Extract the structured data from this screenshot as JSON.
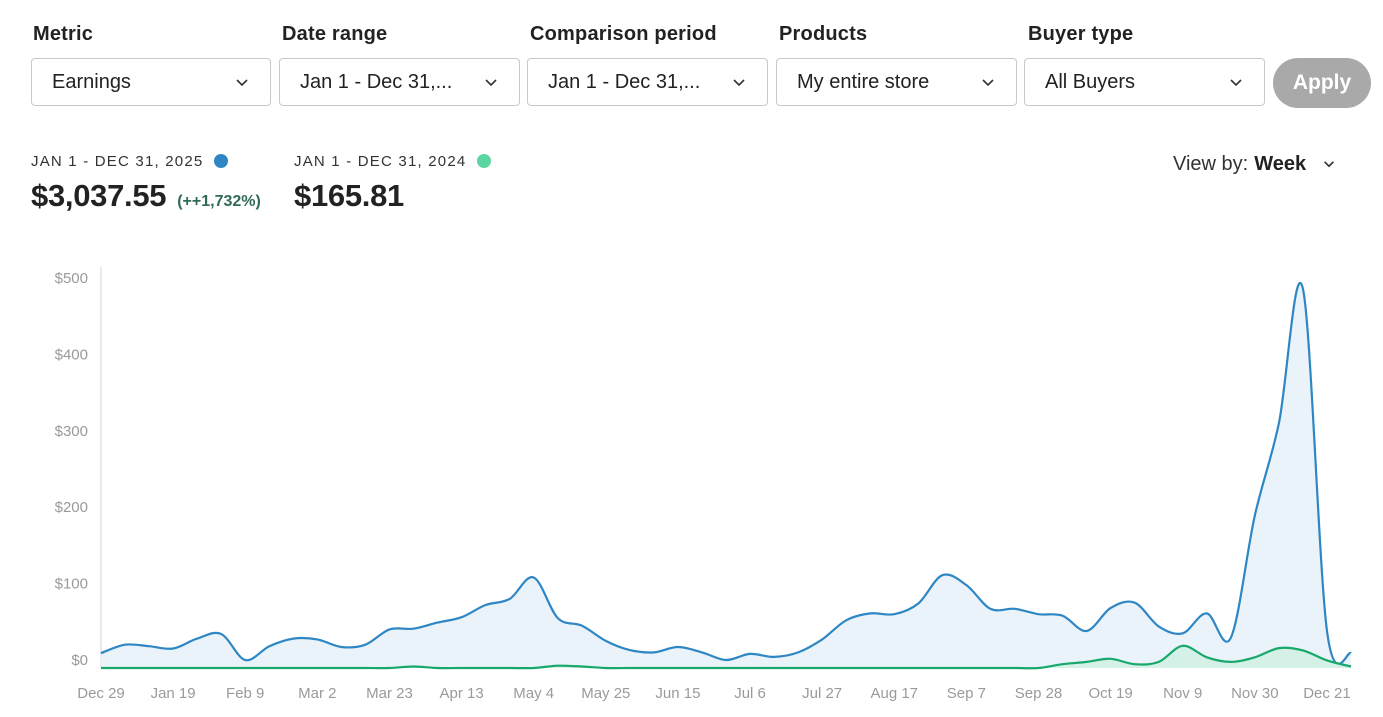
{
  "filters": {
    "metric": {
      "label": "Metric",
      "value": "Earnings"
    },
    "date_range": {
      "label": "Date range",
      "value": "Jan 1 - Dec 31,..."
    },
    "comparison": {
      "label": "Comparison period",
      "value": "Jan 1 - Dec 31,..."
    },
    "products": {
      "label": "Products",
      "value": "My entire store"
    },
    "buyer": {
      "label": "Buyer type",
      "value": "All Buyers"
    },
    "apply_label": "Apply"
  },
  "summary": {
    "current": {
      "period": "JAN 1 - DEC 31, 2025",
      "amount": "$3,037.55",
      "change": "(++1,732%)",
      "color": "#2e87c4"
    },
    "previous": {
      "period": "JAN 1 - DEC 31, 2024",
      "amount": "$165.81",
      "color": "#5bd6a0"
    }
  },
  "view_by": {
    "label": "View by:",
    "value": "Week"
  },
  "chart_data": {
    "type": "area",
    "ylim": [
      0,
      500
    ],
    "y_ticks": [
      "$500",
      "$400",
      "$300",
      "$200",
      "$100",
      "$0"
    ],
    "x_tick_labels": [
      "Dec 29",
      "Jan 19",
      "Feb 9",
      "Mar 2",
      "Mar 23",
      "Apr 13",
      "May 4",
      "May 25",
      "Jun 15",
      "Jul 6",
      "Jul 27",
      "Aug 17",
      "Sep 7",
      "Sep 28",
      "Oct 19",
      "Nov 9",
      "Nov 30",
      "Dec 21"
    ],
    "x": [
      "Dec 29",
      "Jan 5",
      "Jan 12",
      "Jan 19",
      "Jan 26",
      "Feb 2",
      "Feb 9",
      "Feb 16",
      "Feb 23",
      "Mar 2",
      "Mar 9",
      "Mar 16",
      "Mar 23",
      "Mar 30",
      "Apr 6",
      "Apr 13",
      "Apr 20",
      "Apr 27",
      "May 4",
      "May 11",
      "May 18",
      "May 25",
      "Jun 1",
      "Jun 8",
      "Jun 15",
      "Jun 22",
      "Jun 29",
      "Jul 6",
      "Jul 13",
      "Jul 20",
      "Jul 27",
      "Aug 3",
      "Aug 10",
      "Aug 17",
      "Aug 24",
      "Aug 31",
      "Sep 7",
      "Sep 14",
      "Sep 21",
      "Sep 28",
      "Oct 5",
      "Oct 12",
      "Oct 19",
      "Oct 26",
      "Nov 2",
      "Nov 9",
      "Nov 16",
      "Nov 23",
      "Nov 30",
      "Dec 7",
      "Dec 14",
      "Dec 21",
      "Dec 28"
    ],
    "series": [
      {
        "name": "JAN 1 - DEC 31, 2025",
        "color": "#2e87c4",
        "fill": "#eaf3f9",
        "values": [
          9,
          20,
          18,
          15,
          28,
          34,
          0,
          18,
          28,
          27,
          17,
          20,
          40,
          41,
          49,
          56,
          72,
          80,
          108,
          55,
          45,
          25,
          13,
          10,
          17,
          10,
          0,
          8,
          4,
          10,
          27,
          52,
          61,
          60,
          74,
          111,
          98,
          67,
          67,
          60,
          58,
          38,
          68,
          75,
          44,
          35,
          61,
          29,
          189,
          310,
          486,
          38,
          9
        ]
      },
      {
        "name": "JAN 1 - DEC 31, 2024",
        "color": "#18a86c",
        "fill": "#d3efe3",
        "values": [
          0,
          0,
          0,
          0,
          0,
          0,
          0,
          0,
          0,
          0,
          0,
          0,
          0,
          2,
          0,
          0,
          0,
          0,
          0,
          3,
          2,
          0,
          0,
          0,
          0,
          0,
          0,
          0,
          0,
          0,
          0,
          0,
          0,
          0,
          0,
          0,
          0,
          0,
          0,
          0,
          5,
          8,
          12,
          5,
          8,
          29,
          14,
          8,
          14,
          26,
          23,
          10,
          2
        ]
      }
    ]
  }
}
